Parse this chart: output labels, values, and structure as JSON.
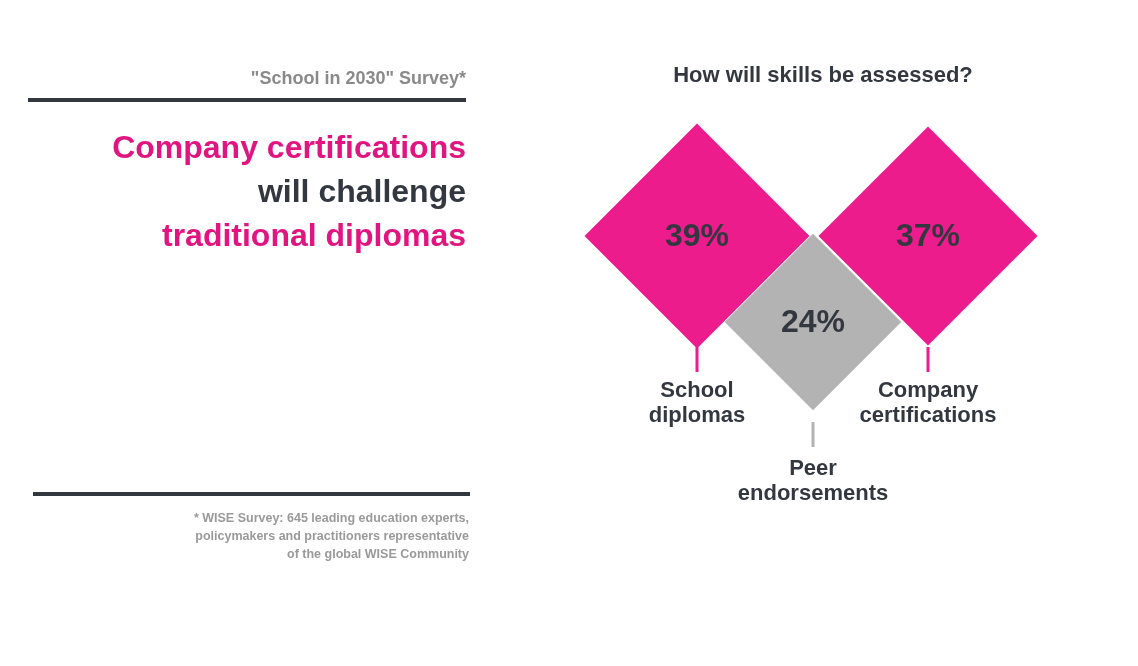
{
  "chart_data": {
    "type": "other",
    "title": "Company certifications will challenge traditional diplomas",
    "subtitle": "How will skills be assessed?",
    "categories": [
      "School diplomas",
      "Peer endorsements",
      "Company certifications"
    ],
    "values": [
      39,
      24,
      37
    ],
    "value_labels": [
      "39%",
      "24%",
      "37%"
    ],
    "colors": [
      "#ec1c8c",
      "#b3b3b3",
      "#ec1c8c"
    ],
    "annotations": [
      "\"School in 2030\" Survey*",
      "* WISE Survey: 645 leading education experts, policymakers and practitioners representative of the global WISE Community"
    ]
  }
}
